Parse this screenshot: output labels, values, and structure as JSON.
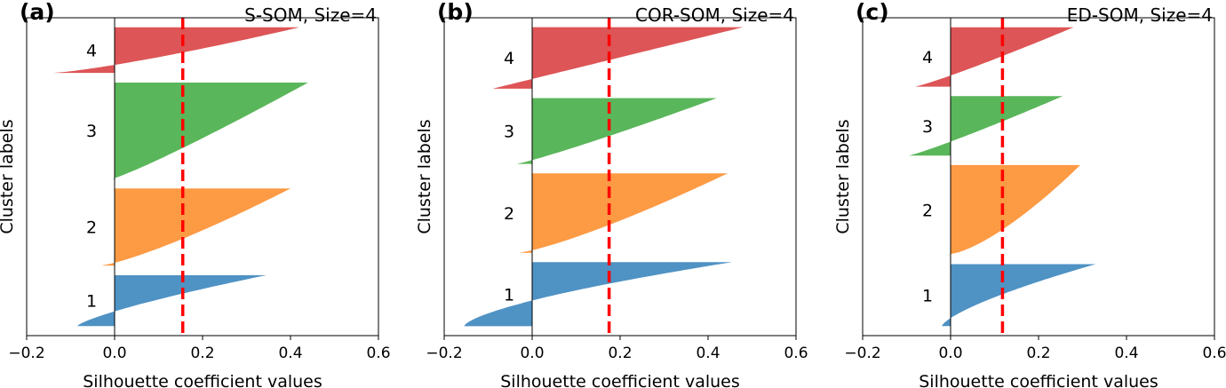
{
  "figure": {
    "letters": [
      "(a)",
      "(b)",
      "(c)"
    ]
  },
  "colors": {
    "c1": "#4f92c4",
    "c2": "#fd9a44",
    "c3": "#5ab65a",
    "c4": "#dd5556",
    "mean": "#ff0000"
  },
  "chart_data": [
    {
      "type": "silhouette",
      "letter": "(a)",
      "title": "S-SOM, Size=4",
      "xlabel": "Silhouette coefficient values",
      "ylabel": "Cluster labels",
      "xlim": [
        -0.2,
        0.6
      ],
      "xticks": [
        -0.2,
        0.0,
        0.2,
        0.4,
        0.6
      ],
      "xtick_labels": [
        "−0.2",
        "0.0",
        "0.2",
        "0.4",
        "0.6"
      ],
      "mean_silhouette": 0.155,
      "clusters": [
        {
          "label": "1",
          "min": -0.085,
          "max": 0.345,
          "size": 58,
          "shape": 1.3
        },
        {
          "label": "2",
          "min": -0.03,
          "max": 0.4,
          "size": 88,
          "shape": 0.8
        },
        {
          "label": "3",
          "min": -0.005,
          "max": 0.44,
          "size": 110,
          "shape": 0.9
        },
        {
          "label": "4",
          "min": -0.14,
          "max": 0.42,
          "size": 52,
          "shape": 0.8
        }
      ]
    },
    {
      "type": "silhouette",
      "letter": "(b)",
      "title": "COR-SOM, Size=4",
      "xlabel": "Silhouette coefficient values",
      "ylabel": "Cluster labels",
      "xlim": [
        -0.2,
        0.6
      ],
      "xticks": [
        -0.2,
        0.0,
        0.2,
        0.4,
        0.6
      ],
      "xtick_labels": [
        "−0.2",
        "0.0",
        "0.2",
        "0.4",
        "0.6"
      ],
      "mean_silhouette": 0.175,
      "clusters": [
        {
          "label": "1",
          "min": -0.155,
          "max": 0.455,
          "size": 75,
          "shape": 1.5
        },
        {
          "label": "2",
          "min": -0.03,
          "max": 0.445,
          "size": 93,
          "shape": 0.8
        },
        {
          "label": "3",
          "min": -0.035,
          "max": 0.42,
          "size": 77,
          "shape": 0.9
        },
        {
          "label": "4",
          "min": -0.09,
          "max": 0.48,
          "size": 72,
          "shape": 1.0
        }
      ]
    },
    {
      "type": "silhouette",
      "letter": "(c)",
      "title": "ED-SOM, Size=4",
      "xlabel": "Silhouette coefficient values",
      "ylabel": "Cluster labels",
      "xlim": [
        -0.2,
        0.6
      ],
      "xticks": [
        -0.2,
        0.0,
        0.2,
        0.4,
        0.6
      ],
      "xtick_labels": [
        "−0.2",
        "0.0",
        "0.2",
        "0.4",
        "0.6"
      ],
      "mean_silhouette": 0.118,
      "clusters": [
        {
          "label": "1",
          "min": -0.02,
          "max": 0.33,
          "size": 72,
          "shape": 1.4
        },
        {
          "label": "2",
          "min": -0.005,
          "max": 0.295,
          "size": 104,
          "shape": 0.7
        },
        {
          "label": "3",
          "min": -0.095,
          "max": 0.255,
          "size": 69,
          "shape": 0.9
        },
        {
          "label": "4",
          "min": -0.08,
          "max": 0.28,
          "size": 69,
          "shape": 0.9
        }
      ]
    }
  ]
}
